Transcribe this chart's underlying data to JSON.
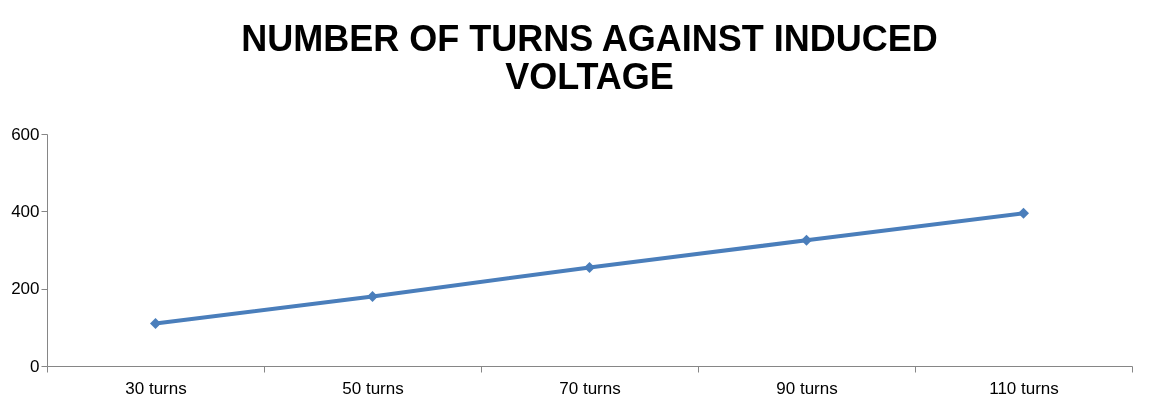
{
  "chart_data": {
    "type": "line",
    "title": "NUMBER OF TURNS AGAINST INDUCED VOLTAGE",
    "categories": [
      "30 turns",
      "50 turns",
      "70 turns",
      "90 turns",
      "110 turns"
    ],
    "series": [
      {
        "color": "#4a7ebb",
        "values": [
          110,
          180,
          255,
          325,
          395
        ]
      }
    ],
    "ylim": [
      0,
      600
    ],
    "yticks": [
      0,
      200,
      400,
      600
    ],
    "grid": false,
    "legend": false,
    "marker": "diamond",
    "line_style": "solid"
  }
}
